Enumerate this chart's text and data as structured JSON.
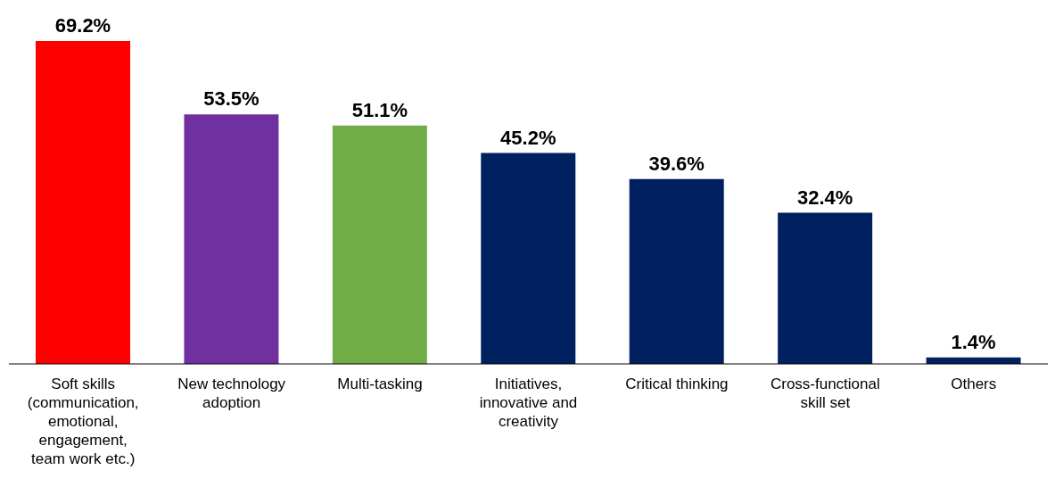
{
  "chart_data": {
    "type": "bar",
    "categories": [
      "Soft skills (communication, emotional, engagement, team work etc.)",
      "New technology adoption",
      "Multi-tasking",
      "Initiatives, innovative and creativity",
      "Critical thinking",
      "Cross-functional skill set",
      "Others"
    ],
    "values": [
      69.2,
      53.5,
      51.1,
      45.2,
      39.6,
      32.4,
      1.4
    ],
    "value_labels": [
      "69.2%",
      "53.5%",
      "51.1%",
      "45.2%",
      "39.6%",
      "32.4%",
      "1.4%"
    ],
    "colors": [
      "#ff0000",
      "#7030a0",
      "#70ad47",
      "#002060",
      "#002060",
      "#002060",
      "#002060"
    ],
    "grid": false,
    "legend": false
  }
}
